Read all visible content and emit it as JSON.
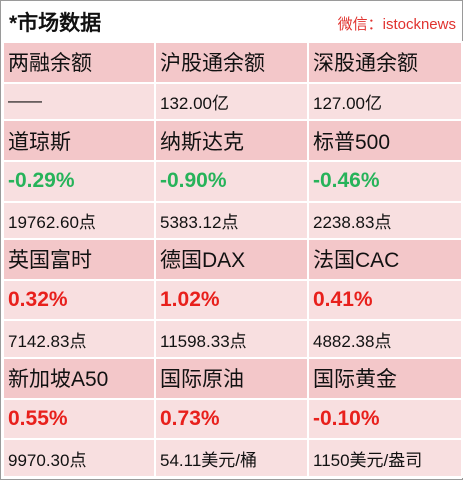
{
  "header": {
    "title": "*市场数据",
    "wechat": "微信：istocknews"
  },
  "row0": {
    "labels": [
      "两融余额",
      "沪股通余额",
      "深股通余额"
    ],
    "values": [
      "——",
      "132.00亿",
      "127.00亿"
    ]
  },
  "row1": {
    "labels": [
      "道琼斯",
      "纳斯达克",
      "标普500"
    ],
    "changes": [
      "-0.29%",
      "-0.90%",
      "-0.46%"
    ],
    "points": [
      "19762.60点",
      "5383.12点",
      "2238.83点"
    ]
  },
  "row2": {
    "labels": [
      "英国富时",
      "德国DAX",
      "法国CAC"
    ],
    "changes": [
      "0.32%",
      "1.02%",
      "0.41%"
    ],
    "points": [
      "7142.83点",
      "11598.33点",
      "4882.38点"
    ]
  },
  "row3": {
    "labels": [
      "新加坡A50",
      "国际原油",
      "国际黄金"
    ],
    "changes": [
      "0.55%",
      "0.73%",
      "-0.10%"
    ],
    "points": [
      "9970.30点",
      "54.11美元/桶",
      "1150美元/盎司"
    ]
  },
  "colors": {
    "up": "#e8201c",
    "down": "#27b35a",
    "label_bg": "#f3c7c9",
    "value_bg": "#f8dfe0"
  }
}
